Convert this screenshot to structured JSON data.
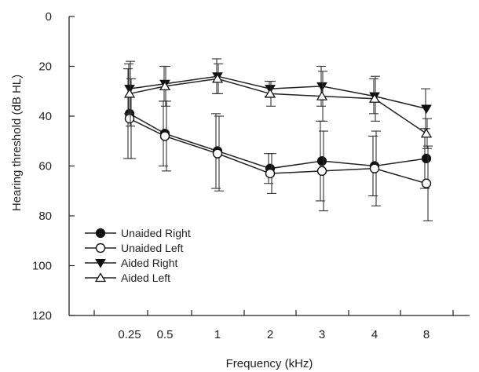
{
  "chart_data": {
    "type": "line",
    "title": "",
    "xlabel": "Frequency (kHz)",
    "ylabel": "Hearing threshold (dB HL)",
    "categories": [
      "0.25",
      "0.5",
      "1",
      "2",
      "3",
      "4",
      "8"
    ],
    "ylim": [
      0,
      120
    ],
    "y_inverted": true,
    "y_ticks": [
      "0",
      "20",
      "40",
      "60",
      "80",
      "100",
      "120"
    ],
    "grid": false,
    "legend_position": "bottom-left",
    "series": [
      {
        "name": "Unaided Right",
        "marker": "filled-circle",
        "values": [
          39,
          47,
          54,
          61,
          58,
          60,
          57
        ],
        "error": [
          18,
          13,
          15,
          6,
          16,
          12,
          12
        ]
      },
      {
        "name": "Unaided Left",
        "marker": "open-circle",
        "values": [
          41,
          48,
          55,
          63,
          62,
          61,
          67
        ],
        "error": [
          16,
          14,
          15,
          8,
          16,
          15,
          15
        ]
      },
      {
        "name": "Aided Right",
        "marker": "filled-triangle-down",
        "values": [
          29,
          27,
          24,
          29,
          28,
          32,
          37
        ],
        "error": [
          10,
          7,
          7,
          3,
          8,
          7,
          8
        ]
      },
      {
        "name": "Aided Left",
        "marker": "open-triangle-up",
        "values": [
          31,
          28,
          25,
          31,
          32,
          33,
          47
        ],
        "error": [
          13,
          8,
          6,
          5,
          10,
          9,
          6
        ]
      }
    ]
  }
}
